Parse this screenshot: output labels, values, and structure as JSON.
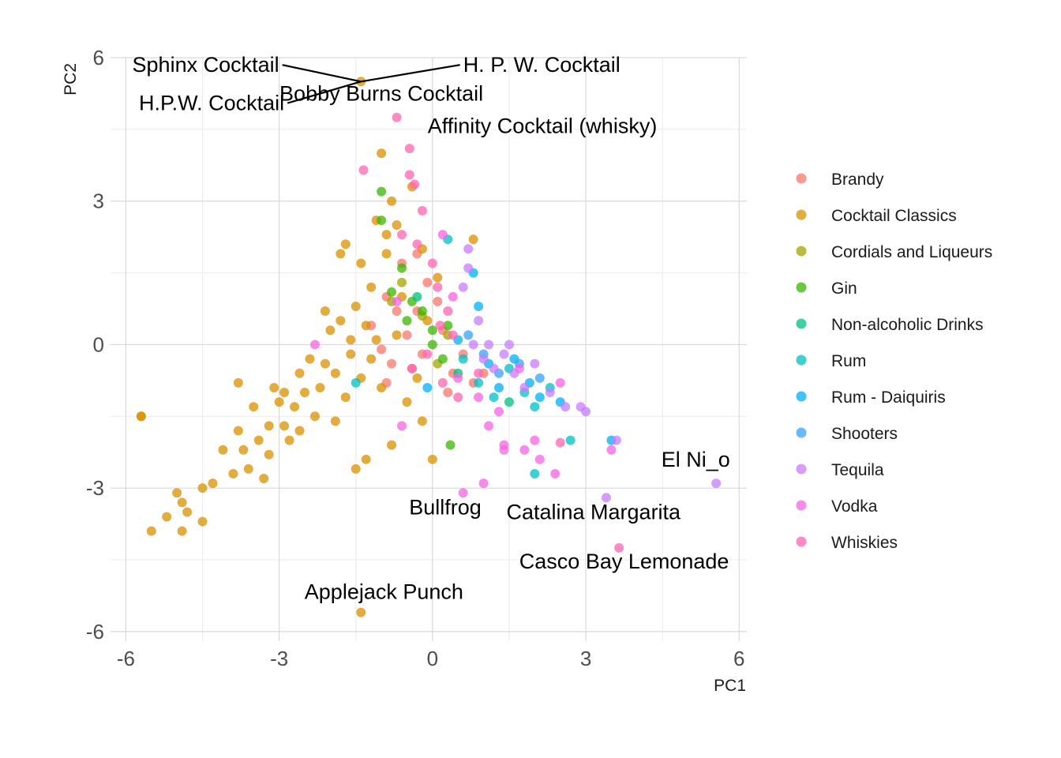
{
  "chart_data": {
    "type": "scatter",
    "xlabel": "PC1",
    "ylabel": "PC2",
    "xlim": [
      -6.3,
      6.15
    ],
    "ylim": [
      -6.2,
      6.0
    ],
    "x_ticks": [
      -6,
      -3,
      0,
      3,
      6
    ],
    "y_ticks": [
      -6,
      -3,
      0,
      3,
      6
    ],
    "x_tick_labels": [
      "-6",
      "-3",
      "0",
      "3",
      "6"
    ],
    "y_tick_labels": [
      "-6",
      "-3",
      "0",
      "3",
      "6"
    ],
    "grid": true,
    "legend_position": "right",
    "series": [
      {
        "name": "Brandy",
        "color": "#F8766D",
        "points": [
          [
            -0.6,
            1.7
          ],
          [
            -0.9,
            1.0
          ],
          [
            -0.3,
            0.7
          ],
          [
            -0.5,
            0.2
          ],
          [
            -1.0,
            -0.1
          ],
          [
            -0.8,
            -0.4
          ],
          [
            -0.2,
            -0.2
          ],
          [
            0.2,
            0.3
          ],
          [
            -0.4,
            -0.5
          ],
          [
            -1.2,
            0.4
          ],
          [
            0.4,
            -0.6
          ],
          [
            -0.1,
            1.3
          ],
          [
            0.8,
            -0.8
          ],
          [
            0.6,
            -0.2
          ],
          [
            -0.7,
            0.7
          ],
          [
            0.1,
            0.9
          ],
          [
            1.0,
            -0.6
          ],
          [
            -0.3,
            1.9
          ],
          [
            0.3,
            -1.0
          ],
          [
            -0.9,
            -0.8
          ]
        ]
      },
      {
        "name": "Cocktail Classics",
        "color": "#D89000",
        "points": [
          [
            -5.7,
            -1.5
          ],
          [
            -5.5,
            -3.9
          ],
          [
            -5.2,
            -3.6
          ],
          [
            -5.0,
            -3.1
          ],
          [
            -4.9,
            -3.9
          ],
          [
            -4.8,
            -3.5
          ],
          [
            -4.5,
            -3.7
          ],
          [
            -4.5,
            -3.0
          ],
          [
            -4.3,
            -2.9
          ],
          [
            -4.1,
            -2.2
          ],
          [
            -3.9,
            -2.7
          ],
          [
            -3.8,
            -1.8
          ],
          [
            -3.7,
            -2.2
          ],
          [
            -3.6,
            -2.6
          ],
          [
            -3.5,
            -1.3
          ],
          [
            -3.4,
            -2.0
          ],
          [
            -3.3,
            -2.8
          ],
          [
            -3.2,
            -2.3
          ],
          [
            -3.1,
            -0.9
          ],
          [
            -3.0,
            -1.2
          ],
          [
            -2.9,
            -1.7
          ],
          [
            -2.8,
            -2.0
          ],
          [
            -2.7,
            -1.3
          ],
          [
            -2.6,
            -0.6
          ],
          [
            -2.5,
            -1.0
          ],
          [
            -2.4,
            -0.3
          ],
          [
            -2.3,
            -1.5
          ],
          [
            -2.2,
            -0.9
          ],
          [
            -2.1,
            -0.4
          ],
          [
            -2.0,
            0.3
          ],
          [
            -1.9,
            -0.6
          ],
          [
            -1.8,
            1.9
          ],
          [
            -1.8,
            0.5
          ],
          [
            -1.7,
            -1.1
          ],
          [
            -1.6,
            -0.2
          ],
          [
            -1.5,
            -2.6
          ],
          [
            -1.5,
            0.8
          ],
          [
            -1.4,
            -0.7
          ],
          [
            -1.4,
            1.7
          ],
          [
            -1.3,
            -2.4
          ],
          [
            -1.3,
            0.4
          ],
          [
            -1.2,
            -0.3
          ],
          [
            -1.1,
            2.6
          ],
          [
            -1.1,
            0.1
          ],
          [
            -1.0,
            4.0
          ],
          [
            -1.0,
            -0.9
          ],
          [
            -0.9,
            1.9
          ],
          [
            -0.9,
            2.3
          ],
          [
            -0.8,
            -2.1
          ],
          [
            -0.8,
            3.0
          ],
          [
            -0.7,
            2.5
          ],
          [
            -0.6,
            1.0
          ],
          [
            -0.5,
            -1.2
          ],
          [
            -0.4,
            3.3
          ],
          [
            -0.3,
            -0.7
          ],
          [
            -0.2,
            2.0
          ],
          [
            -0.2,
            -1.6
          ],
          [
            -0.1,
            0.5
          ],
          [
            0.0,
            -2.4
          ],
          [
            0.1,
            1.4
          ],
          [
            0.8,
            2.2
          ],
          [
            -1.4,
            5.5
          ],
          [
            -1.4,
            -5.6
          ],
          [
            -3.2,
            -1.7
          ],
          [
            -2.6,
            -1.8
          ],
          [
            -1.9,
            -1.6
          ],
          [
            -1.7,
            2.1
          ],
          [
            -4.9,
            -3.3
          ],
          [
            -5.7,
            -1.5
          ],
          [
            -2.1,
            0.7
          ],
          [
            -1.6,
            0.1
          ],
          [
            -1.2,
            1.2
          ],
          [
            -0.7,
            0.2
          ],
          [
            -3.8,
            -0.8
          ],
          [
            -2.9,
            -1.0
          ]
        ]
      },
      {
        "name": "Cordials and Liqueurs",
        "color": "#A3A500",
        "points": [
          [
            -0.6,
            1.3
          ],
          [
            -0.2,
            0.6
          ],
          [
            0.1,
            -0.4
          ],
          [
            -0.8,
            0.9
          ],
          [
            0.3,
            0.2
          ]
        ]
      },
      {
        "name": "Gin",
        "color": "#39B600",
        "points": [
          [
            -1.0,
            3.2
          ],
          [
            -1.0,
            2.6
          ],
          [
            -0.6,
            1.6
          ],
          [
            -0.4,
            0.9
          ],
          [
            -0.2,
            0.7
          ],
          [
            0.0,
            0.3
          ],
          [
            0.3,
            0.4
          ],
          [
            0.0,
            0.0
          ],
          [
            0.35,
            -2.1
          ],
          [
            -0.5,
            0.5
          ],
          [
            -0.8,
            1.1
          ],
          [
            0.2,
            -0.3
          ]
        ]
      },
      {
        "name": "Non-alcoholic Drinks",
        "color": "#00BF7D",
        "points": [
          [
            -0.3,
            1.0
          ],
          [
            0.5,
            -0.6
          ],
          [
            1.5,
            -1.2
          ]
        ]
      },
      {
        "name": "Rum",
        "color": "#00BFC4",
        "points": [
          [
            0.6,
            -0.3
          ],
          [
            0.9,
            -0.8
          ],
          [
            1.2,
            -1.1
          ],
          [
            1.5,
            -0.5
          ],
          [
            1.8,
            -1.0
          ],
          [
            2.0,
            -1.3
          ],
          [
            2.3,
            -0.9
          ],
          [
            2.7,
            -2.0
          ],
          [
            2.0,
            -2.7
          ],
          [
            0.3,
            2.2
          ],
          [
            -1.5,
            -0.8
          ]
        ]
      },
      {
        "name": "Rum - Daiquiris",
        "color": "#00B0F6",
        "points": [
          [
            0.8,
            1.5
          ],
          [
            0.9,
            0.8
          ],
          [
            1.1,
            -0.4
          ],
          [
            1.3,
            -0.9
          ],
          [
            1.6,
            -0.3
          ],
          [
            1.9,
            -0.8
          ],
          [
            2.1,
            -1.1
          ],
          [
            2.5,
            -1.2
          ],
          [
            3.5,
            -2.0
          ],
          [
            0.5,
            0.1
          ],
          [
            -0.1,
            -0.9
          ]
        ]
      },
      {
        "name": "Shooters",
        "color": "#35A2FF",
        "points": [
          [
            0.7,
            0.2
          ],
          [
            1.0,
            -0.2
          ],
          [
            1.3,
            -0.6
          ],
          [
            1.7,
            -0.4
          ],
          [
            2.1,
            -0.7
          ]
        ]
      },
      {
        "name": "Tequila",
        "color": "#C77CFF",
        "points": [
          [
            0.7,
            2.0
          ],
          [
            0.7,
            1.6
          ],
          [
            0.6,
            1.2
          ],
          [
            0.9,
            0.5
          ],
          [
            0.8,
            0.0
          ],
          [
            1.0,
            -0.3
          ],
          [
            1.2,
            -0.5
          ],
          [
            1.4,
            -0.2
          ],
          [
            1.6,
            -0.6
          ],
          [
            1.8,
            -0.9
          ],
          [
            2.0,
            -0.4
          ],
          [
            2.3,
            -1.0
          ],
          [
            2.6,
            -1.3
          ],
          [
            2.9,
            -1.3
          ],
          [
            3.0,
            -1.4
          ],
          [
            3.4,
            -3.2
          ],
          [
            3.6,
            -2.0
          ],
          [
            5.55,
            -2.9
          ],
          [
            1.1,
            0.0
          ],
          [
            1.5,
            0.0
          ]
        ]
      },
      {
        "name": "Vodka",
        "color": "#F564E3",
        "points": [
          [
            -0.7,
            0.9
          ],
          [
            -2.3,
            0.0
          ],
          [
            -0.6,
            -1.7
          ],
          [
            0.6,
            -3.1
          ],
          [
            1.0,
            -2.9
          ],
          [
            1.1,
            -1.7
          ],
          [
            1.4,
            -2.1
          ],
          [
            1.4,
            -2.2
          ],
          [
            1.8,
            -2.2
          ],
          [
            2.0,
            -2.0
          ],
          [
            2.1,
            -2.4
          ],
          [
            2.4,
            -2.7
          ],
          [
            2.5,
            -0.8
          ],
          [
            3.5,
            -2.2
          ],
          [
            0.2,
            2.3
          ],
          [
            0.4,
            1.0
          ],
          [
            0.5,
            -0.7
          ],
          [
            0.9,
            -1.1
          ],
          [
            1.3,
            -1.4
          ],
          [
            1.7,
            -0.5
          ]
        ]
      },
      {
        "name": "Whiskies",
        "color": "#FF64B0",
        "points": [
          [
            -0.7,
            4.75
          ],
          [
            -0.45,
            4.1
          ],
          [
            -1.35,
            3.65
          ],
          [
            -0.45,
            3.55
          ],
          [
            -0.35,
            3.35
          ],
          [
            -0.2,
            2.8
          ],
          [
            -0.3,
            2.1
          ],
          [
            0.0,
            1.7
          ],
          [
            0.1,
            1.2
          ],
          [
            0.3,
            0.7
          ],
          [
            0.4,
            0.2
          ],
          [
            -0.1,
            -0.2
          ],
          [
            -0.4,
            -0.5
          ],
          [
            0.2,
            -0.8
          ],
          [
            0.5,
            -1.1
          ],
          [
            0.9,
            -0.6
          ],
          [
            2.5,
            -2.05
          ],
          [
            3.65,
            -4.25
          ],
          [
            -0.6,
            2.3
          ],
          [
            0.15,
            0.4
          ]
        ]
      }
    ],
    "annotations": [
      {
        "text": "Sphinx Cocktail",
        "x": -3.0,
        "y": 5.7,
        "anchor": "end",
        "leader_to": [
          -1.4,
          5.5
        ]
      },
      {
        "text": "H. P. W. Cocktail",
        "x": 0.6,
        "y": 5.7,
        "anchor": "start",
        "leader_to": [
          -1.4,
          5.5
        ]
      },
      {
        "text": "Bobby Burns Cocktail",
        "x": -1.0,
        "y": 5.1,
        "anchor": "middle"
      },
      {
        "text": "H.P.W. Cocktail",
        "x": -2.9,
        "y": 4.9,
        "anchor": "end",
        "leader_to": [
          -1.4,
          5.5
        ]
      },
      {
        "text": "Affinity Cocktail (whisky)",
        "x": 2.15,
        "y": 4.42,
        "anchor": "middle"
      },
      {
        "text": "El Ni_o",
        "x": 5.15,
        "y": -2.55,
        "anchor": "middle"
      },
      {
        "text": "Bullfrog",
        "x": 0.25,
        "y": -3.55,
        "anchor": "middle"
      },
      {
        "text": "Catalina Margarita",
        "x": 3.15,
        "y": -3.65,
        "anchor": "middle"
      },
      {
        "text": "Casco Bay Lemonade",
        "x": 3.75,
        "y": -4.68,
        "anchor": "middle"
      },
      {
        "text": "Applejack Punch",
        "x": -0.95,
        "y": -5.32,
        "anchor": "middle"
      }
    ]
  }
}
